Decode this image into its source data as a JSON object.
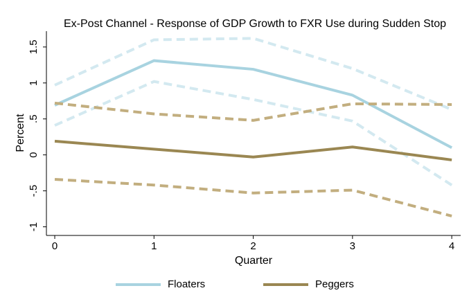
{
  "chart_data": {
    "type": "line",
    "title": "Ex-Post Channel - Response of GDP Growth to FXR Use during Sudden Stop",
    "x_label": "Quarter",
    "y_label": "Percent",
    "x": [
      0,
      1,
      2,
      3,
      4
    ],
    "series": [
      {
        "name": "Floaters",
        "color": "#a8d3e0",
        "values": [
          0.69,
          1.31,
          1.19,
          0.83,
          0.1
        ]
      },
      {
        "color": "#d3e9f0",
        "dashed": true,
        "values": [
          0.97,
          1.6,
          1.62,
          1.2,
          0.63
        ]
      },
      {
        "color": "#d3e9f0",
        "dashed": true,
        "values": [
          0.41,
          1.02,
          0.77,
          0.47,
          -0.42
        ]
      },
      {
        "name": "Peggers",
        "color": "#9a8752",
        "values": [
          0.19,
          0.08,
          -0.03,
          0.11,
          -0.07
        ]
      },
      {
        "color": "#c2ae7f",
        "dashed": true,
        "values": [
          0.72,
          0.57,
          0.48,
          0.71,
          0.7
        ]
      },
      {
        "color": "#c2ae7f",
        "dashed": true,
        "values": [
          -0.34,
          -0.42,
          -0.53,
          -0.49,
          -0.85
        ]
      }
    ],
    "xlim": [
      -0.084,
      4.09
    ],
    "xticks": [
      0,
      1,
      2,
      3,
      4
    ],
    "ylim": [
      -1.12,
      1.72
    ],
    "yticks": [
      -1,
      {
        "value": -0.5,
        "label": "-.5"
      },
      0,
      {
        "value": 0.5,
        "label": ".5"
      },
      1,
      1.5
    ],
    "grid": false
  }
}
